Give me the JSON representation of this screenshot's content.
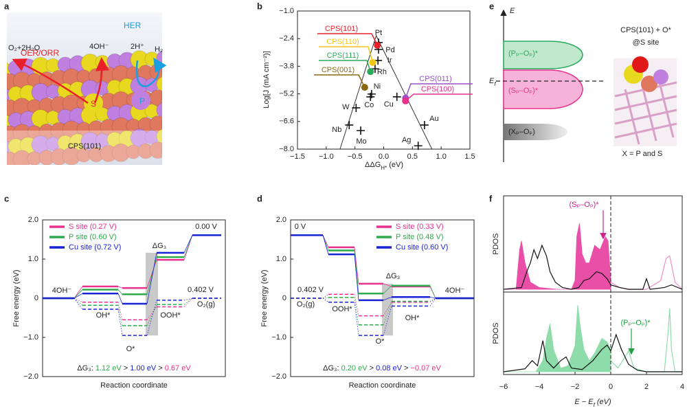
{
  "panel_labels": [
    "a",
    "b",
    "c",
    "d",
    "e",
    "f"
  ],
  "panel_a": {
    "process_left": "OER/ORR",
    "process_right": "HER",
    "species": [
      "O₂+2H₂O",
      "4OH⁻",
      "2H⁺",
      "H₂"
    ],
    "atom_labels": [
      "S",
      "P"
    ],
    "surface": "CPS(101)"
  },
  "panel_e": {
    "axis": "E",
    "fermi": [
      "E",
      "f"
    ],
    "states": [
      "(Pₚ–Oₚ)*",
      "(Sₚ–Oₚ)*",
      "(Xₚ–Oₚ)"
    ],
    "model_title": [
      "CPS(101) + O*",
      "@S site"
    ],
    "note": "X = P and S"
  },
  "chart_data": [
    {
      "type": "scatter",
      "xlabel": [
        "ΔΔG",
        "H*",
        " (eV)"
      ],
      "ylabel": "Log[J (mA cm⁻²)]",
      "xlim": [
        -1.5,
        1.5
      ],
      "ylim": [
        -8.0,
        -1.0
      ],
      "xticks": [
        {
          "value": -1.5,
          "label": "−1.5"
        },
        {
          "value": -1.0,
          "label": "−1.0"
        },
        {
          "value": -0.5,
          "label": "−0.5"
        },
        {
          "value": 0.0,
          "label": "0.0"
        },
        {
          "value": 0.5,
          "label": "0.5"
        },
        {
          "value": 1.0,
          "label": "1.0"
        },
        {
          "value": 1.5,
          "label": "1.5"
        }
      ],
      "yticks": [
        {
          "value": -1.0,
          "label": "−1.0"
        },
        {
          "value": -2.4,
          "label": "−2.4"
        },
        {
          "value": -3.8,
          "label": "−3.8"
        },
        {
          "value": -5.2,
          "label": "−5.2"
        },
        {
          "value": -6.6,
          "label": "−6.6"
        },
        {
          "value": -8.0,
          "label": "−8.0"
        }
      ],
      "volcano": {
        "x": [
          -0.76,
          -0.13,
          0.84
        ],
        "y": [
          -8.0,
          -2.25,
          -8.0
        ]
      },
      "points": {
        "labels": [
          "Pt",
          "Pd",
          "Ir",
          "Rh",
          "Ni",
          "Co",
          "W",
          "Nb",
          "Mo",
          "Cu",
          "Au",
          "Ag"
        ],
        "x": [
          -0.09,
          -0.09,
          -0.1,
          -0.15,
          -0.21,
          -0.23,
          -0.48,
          -0.6,
          -0.4,
          0.23,
          0.71,
          0.6
        ],
        "y": [
          -2.6,
          -2.95,
          -3.51,
          -3.93,
          -5.21,
          -5.35,
          -5.91,
          -6.78,
          -7.06,
          -5.35,
          -6.78,
          -7.83
        ]
      },
      "series": [
        {
          "name": "CPS(101)",
          "color": "#e8202a",
          "x": -0.11,
          "y": -2.74
        },
        {
          "name": "CPS(110)",
          "color": "#f5c518",
          "x": -0.19,
          "y": -3.61
        },
        {
          "name": "CPS(111)",
          "color": "#2aaa5a",
          "x": -0.23,
          "y": -4.07
        },
        {
          "name": "CPS(001)",
          "color": "#8b6914",
          "x": -0.33,
          "y": -4.87
        },
        {
          "name": "CPS(011)",
          "color": "#9b4fc8",
          "x": 0.38,
          "y": -5.42
        },
        {
          "name": "CPS(100)",
          "color": "#e8308c",
          "x": 0.38,
          "y": -5.56
        }
      ]
    },
    {
      "type": "energy",
      "ylabel": "Free energy (eV)",
      "xlabel": "Reaction coordinate",
      "ylim": [
        -2.0,
        2.0
      ],
      "yticks": [
        {
          "value": 2.0,
          "label": "2.0"
        },
        {
          "value": 1.0,
          "label": "1.0"
        },
        0,
        {
          "value": -1.0,
          "label": "−1.0"
        },
        {
          "value": -2.0,
          "label": "−2.0"
        }
      ],
      "annotations": [
        "4OH⁻",
        "OH*",
        "O*",
        "OOH*",
        "0.402 V",
        "O₂(g)",
        "0.00 V",
        "ΔG₃"
      ],
      "series": [
        {
          "name": "S site (0.27 V)",
          "color": "#e8308c",
          "values": [
            0,
            0.3,
            0.26,
            0.98,
            1.61
          ],
          "dashed_values": [
            0,
            -0.1,
            -0.55,
            -0.22,
            0
          ]
        },
        {
          "name": "P site (0.60 V)",
          "color": "#2eaa4a",
          "values": [
            0,
            0.22,
            0.1,
            1.05,
            1.61
          ],
          "dashed_values": [
            0,
            -0.18,
            -0.7,
            -0.16,
            0
          ]
        },
        {
          "name": "Cu site (0.72 V)",
          "color": "#1a22d6",
          "values": [
            0,
            0.12,
            -0.14,
            1.16,
            1.61
          ],
          "dashed_values": [
            0,
            -0.28,
            -0.95,
            -0.05,
            0
          ]
        }
      ],
      "comparison": [
        {
          "text": "ΔG₃: ",
          "color": "#222222"
        },
        {
          "text": "1.12 eV",
          "color": "#2eaa4a"
        },
        {
          "text": " > ",
          "color": "#222222"
        },
        {
          "text": "1.00 eV",
          "color": "#1a22d6"
        },
        {
          "text": " > ",
          "color": "#222222"
        },
        {
          "text": "0.67 eV",
          "color": "#e8308c"
        }
      ]
    },
    {
      "type": "energy",
      "ylabel": "Free energy (eV)",
      "xlabel": "Reaction coordinate",
      "ylim": [
        -2.0,
        2.0
      ],
      "yticks": [
        {
          "value": 2.0,
          "label": "2.0"
        },
        {
          "value": 1.0,
          "label": "1.0"
        },
        0,
        {
          "value": -1.0,
          "label": "−1.0"
        },
        {
          "value": -2.0,
          "label": "−2.0"
        }
      ],
      "annotations": [
        "0 V",
        "0.402 V",
        "O₂(g)",
        "OOH*",
        "O*",
        "OH*",
        "4OH⁻",
        "ΔG₃"
      ],
      "series": [
        {
          "name": "S site (0.33 V)",
          "color": "#e8308c",
          "values": [
            1.61,
            1.3,
            0.37,
            0.3,
            0
          ],
          "dashed_values": [
            0,
            0.1,
            -0.45,
            -0.1,
            0
          ]
        },
        {
          "name": "P site (0.48 V)",
          "color": "#2eaa4a",
          "values": [
            1.61,
            1.22,
            0.12,
            0.32,
            0
          ],
          "dashed_values": [
            0,
            0.02,
            -0.68,
            -0.08,
            0
          ]
        },
        {
          "name": "Cu site (0.60 V)",
          "color": "#1a22d6",
          "values": [
            1.61,
            1.12,
            -0.05,
            0.03,
            0
          ],
          "dashed_values": [
            0,
            -0.1,
            -0.95,
            -0.2,
            0
          ]
        }
      ],
      "comparison": [
        {
          "text": "ΔG₃: ",
          "color": "#222222"
        },
        {
          "text": "0.20 eV",
          "color": "#2eaa4a"
        },
        {
          "text": " > ",
          "color": "#222222"
        },
        {
          "text": "0.08 eV",
          "color": "#1a22d6"
        },
        {
          "text": " > ",
          "color": "#222222"
        },
        {
          "text": "−0.07 eV",
          "color": "#e8308c"
        }
      ]
    },
    {
      "type": "area",
      "xlabel": [
        "E − E",
        "f",
        " (eV)"
      ],
      "ylabel": "PDOS",
      "xlim": [
        -6,
        4
      ],
      "xticks": [
        {
          "value": -6,
          "label": "−6"
        },
        {
          "value": -4,
          "label": "−4"
        },
        {
          "value": -2,
          "label": "−2"
        },
        0,
        2,
        4
      ],
      "panels": [
        {
          "ylim": [
            0,
            1
          ],
          "annotation": "(Sₚ–Oₚ)*",
          "series": [
            {
              "style": "fill",
              "color": "#ea4fa8",
              "x": [
                -6,
                -5.3,
                -5.1,
                -5.0,
                -4.8,
                -4.5,
                -4.0,
                -3.0,
                -2.2,
                -2.0,
                -1.9,
                -1.75,
                -1.6,
                -1.4,
                -1.2,
                -0.9,
                -0.6,
                -0.3,
                -0.15,
                0
              ],
              "values": [
                0,
                0,
                0.45,
                0.55,
                0.3,
                0.08,
                0.02,
                0,
                0,
                0.1,
                0.6,
                0.75,
                0.4,
                0.3,
                0.3,
                0.5,
                0.45,
                0.6,
                0.55,
                0.1
              ]
            },
            {
              "style": "line",
              "color": "#f08cc8",
              "x": [
                0,
                0.5,
                1,
                2,
                2.8,
                3.1,
                3.3,
                3.6,
                4
              ],
              "values": [
                0.08,
                0.02,
                0,
                0,
                0.1,
                0.35,
                0.38,
                0.08,
                0
              ]
            },
            {
              "style": "line",
              "color": "#111111",
              "x": [
                -6,
                -5.0,
                -4.7,
                -4.5,
                -4.3,
                -4.1,
                -3.85,
                -3.6,
                -3.4,
                -3.1,
                -2.7,
                -2.2,
                -1.8,
                -1.5,
                -1.2,
                -0.8,
                -0.5,
                -0.2,
                0
              ],
              "values": [
                0,
                0.02,
                0.2,
                0.3,
                0.45,
                0.35,
                0.5,
                0.38,
                0.2,
                0.08,
                0.02,
                0,
                0.02,
                0.1,
                0.12,
                0.2,
                0.18,
                0.12,
                0.05
              ]
            },
            {
              "style": "line",
              "color": "#111111",
              "x": [
                0,
                0.5,
                1,
                1.8,
                2.0,
                2.2,
                3,
                3.4,
                4
              ],
              "values": [
                0.05,
                0.02,
                0,
                0,
                0.12,
                0,
                0.02,
                0.05,
                0
              ]
            }
          ]
        },
        {
          "ylim": [
            0,
            1
          ],
          "annotation": "(Pₚ–Oₚ)*",
          "series": [
            {
              "style": "fill",
              "color": "#8fdcab",
              "x": [
                -6,
                -4.2,
                -3.8,
                -3.6,
                -3.4,
                -3.2,
                -2.8,
                -2.4,
                -2.0,
                -1.85,
                -1.7,
                -1.5,
                -1.2,
                -0.9,
                -0.5,
                -0.2,
                0
              ],
              "values": [
                0,
                0,
                0.15,
                0.45,
                0.65,
                0.3,
                0.05,
                0.08,
                0.35,
                0.9,
                0.6,
                0.3,
                0.15,
                0.25,
                0.45,
                0.4,
                0.3
              ]
            },
            {
              "style": "line",
              "color": "#8fdcab",
              "x": [
                0,
                0.4,
                0.8,
                1.0,
                1.3,
                2,
                3,
                3.2,
                3.3,
                3.4,
                3.6,
                4
              ],
              "values": [
                0.15,
                0.05,
                0.2,
                0.28,
                0.05,
                0,
                0,
                0.5,
                0.85,
                0.3,
                0,
                0
              ]
            },
            {
              "style": "line",
              "color": "#111111",
              "x": [
                -6,
                -4.8,
                -4.4,
                -4.1,
                -3.8,
                -3.6,
                -3.2,
                -2.8,
                -2.5,
                -2.2,
                -1.6,
                -1.0,
                -0.5,
                -0.2,
                0
              ],
              "values": [
                0,
                0.04,
                0.15,
                0.08,
                0.42,
                0.15,
                0.05,
                0.15,
                0.2,
                0.05,
                0.03,
                0.15,
                0.3,
                0.36,
                0.28
              ]
            },
            {
              "style": "line",
              "color": "#111111",
              "x": [
                0,
                0.3,
                0.6,
                1.0,
                1.5,
                2,
                4
              ],
              "values": [
                0.28,
                0.5,
                0.3,
                0.1,
                0.02,
                0,
                0
              ]
            }
          ]
        }
      ]
    }
  ]
}
